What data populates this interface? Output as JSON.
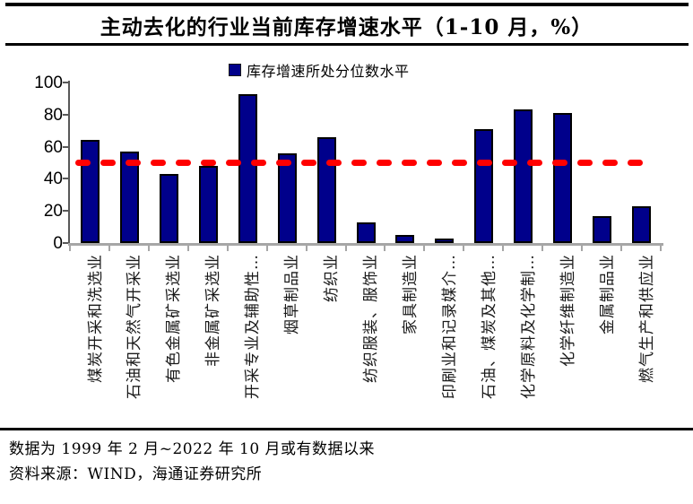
{
  "title": "主动去化的行业当前库存增速水平（1-10 月，%）",
  "legend": {
    "label": "库存增速所处分位数水平",
    "marker_color": "#00008B"
  },
  "chart_data": {
    "type": "bar",
    "title": "主动去化的行业当前库存增速水平（1-10 月，%）",
    "legend_entries": [
      "库存增速所处分位数水平"
    ],
    "legend_position": "top-center",
    "categories": [
      "煤炭开采和洗选业",
      "石油和天然气开采业",
      "有色金属矿采选业",
      "非金属矿采选业",
      "开采专业及辅助性…",
      "烟草制品业",
      "纺织业",
      "纺织服装、服饰业",
      "家具制造业",
      "印刷业和记录媒介…",
      "石油、煤炭及其他…",
      "化学原料及化学制…",
      "化学纤维制造业",
      "金属制品业",
      "燃气生产和供应业"
    ],
    "values": [
      64,
      57,
      43,
      48,
      93,
      56,
      66,
      13,
      5,
      3,
      71,
      83,
      81,
      17,
      23
    ],
    "reference_line": {
      "value": 50,
      "style": "dashed",
      "color": "#FF0000"
    },
    "ylim": [
      0,
      100
    ],
    "yticks": [
      0,
      20,
      40,
      60,
      80,
      100
    ],
    "grid": false,
    "xlabel": "",
    "ylabel": ""
  },
  "colors": {
    "bar_fill": "#00008B",
    "bar_border": "#000000",
    "reference_line": "#FF0000",
    "x_axis": "#A6A6A6",
    "y_axis": "#595959"
  },
  "footer": {
    "note": "数据为 1999 年 2 月~2022 年 10 月或有数据以来",
    "source": "资料来源：WIND，海通证券研究所"
  }
}
